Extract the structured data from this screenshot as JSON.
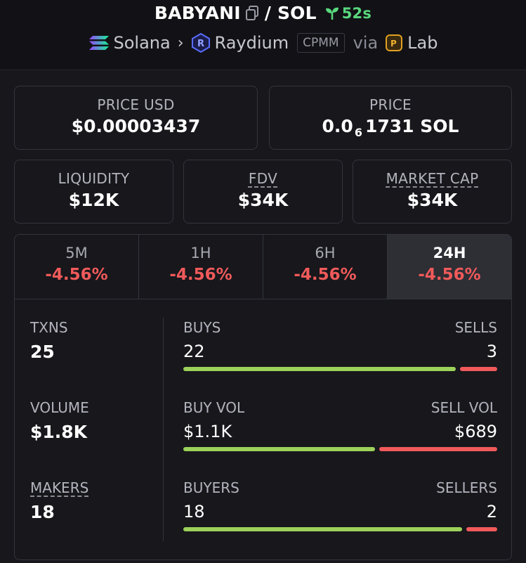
{
  "header": {
    "token": "BABYANI",
    "pair_sep": "/ SOL",
    "age": "52s",
    "chain": "Solana",
    "dex": "Raydium",
    "pool_type": "CPMM",
    "via": "via",
    "launchpad": "Lab"
  },
  "price_usd": {
    "label": "PRICE USD",
    "value": "$0.00003437"
  },
  "price": {
    "label": "PRICE",
    "prefix": "0.0",
    "zeros": "6",
    "suffix": "1731 SOL"
  },
  "liquidity": {
    "label": "LIQUIDITY",
    "value": "$12K"
  },
  "fdv": {
    "label": "FDV",
    "value": "$34K"
  },
  "market_cap": {
    "label": "MARKET CAP",
    "value": "$34K"
  },
  "tabs": [
    {
      "label": "5M",
      "change": "-4.56%"
    },
    {
      "label": "1H",
      "change": "-4.56%"
    },
    {
      "label": "6H",
      "change": "-4.56%"
    },
    {
      "label": "24H",
      "change": "-4.56%",
      "active": true
    }
  ],
  "txns": {
    "label": "TXNS",
    "value": "25"
  },
  "volume": {
    "label": "VOLUME",
    "value": "$1.8K"
  },
  "makers": {
    "label": "MAKERS",
    "value": "18"
  },
  "buys": {
    "left_label": "BUYS",
    "right_label": "SELLS",
    "left_value": "22",
    "right_value": "3",
    "left_fraction": 0.88
  },
  "vol": {
    "left_label": "BUY VOL",
    "right_label": "SELL VOL",
    "left_value": "$1.1K",
    "right_value": "$689",
    "left_fraction": 0.62
  },
  "buyers": {
    "left_label": "BUYERS",
    "right_label": "SELLERS",
    "left_value": "18",
    "right_value": "2",
    "left_fraction": 0.9
  },
  "colors": {
    "buy": "#9cd15a",
    "sell": "#f05a5a",
    "age": "#59d87e"
  }
}
